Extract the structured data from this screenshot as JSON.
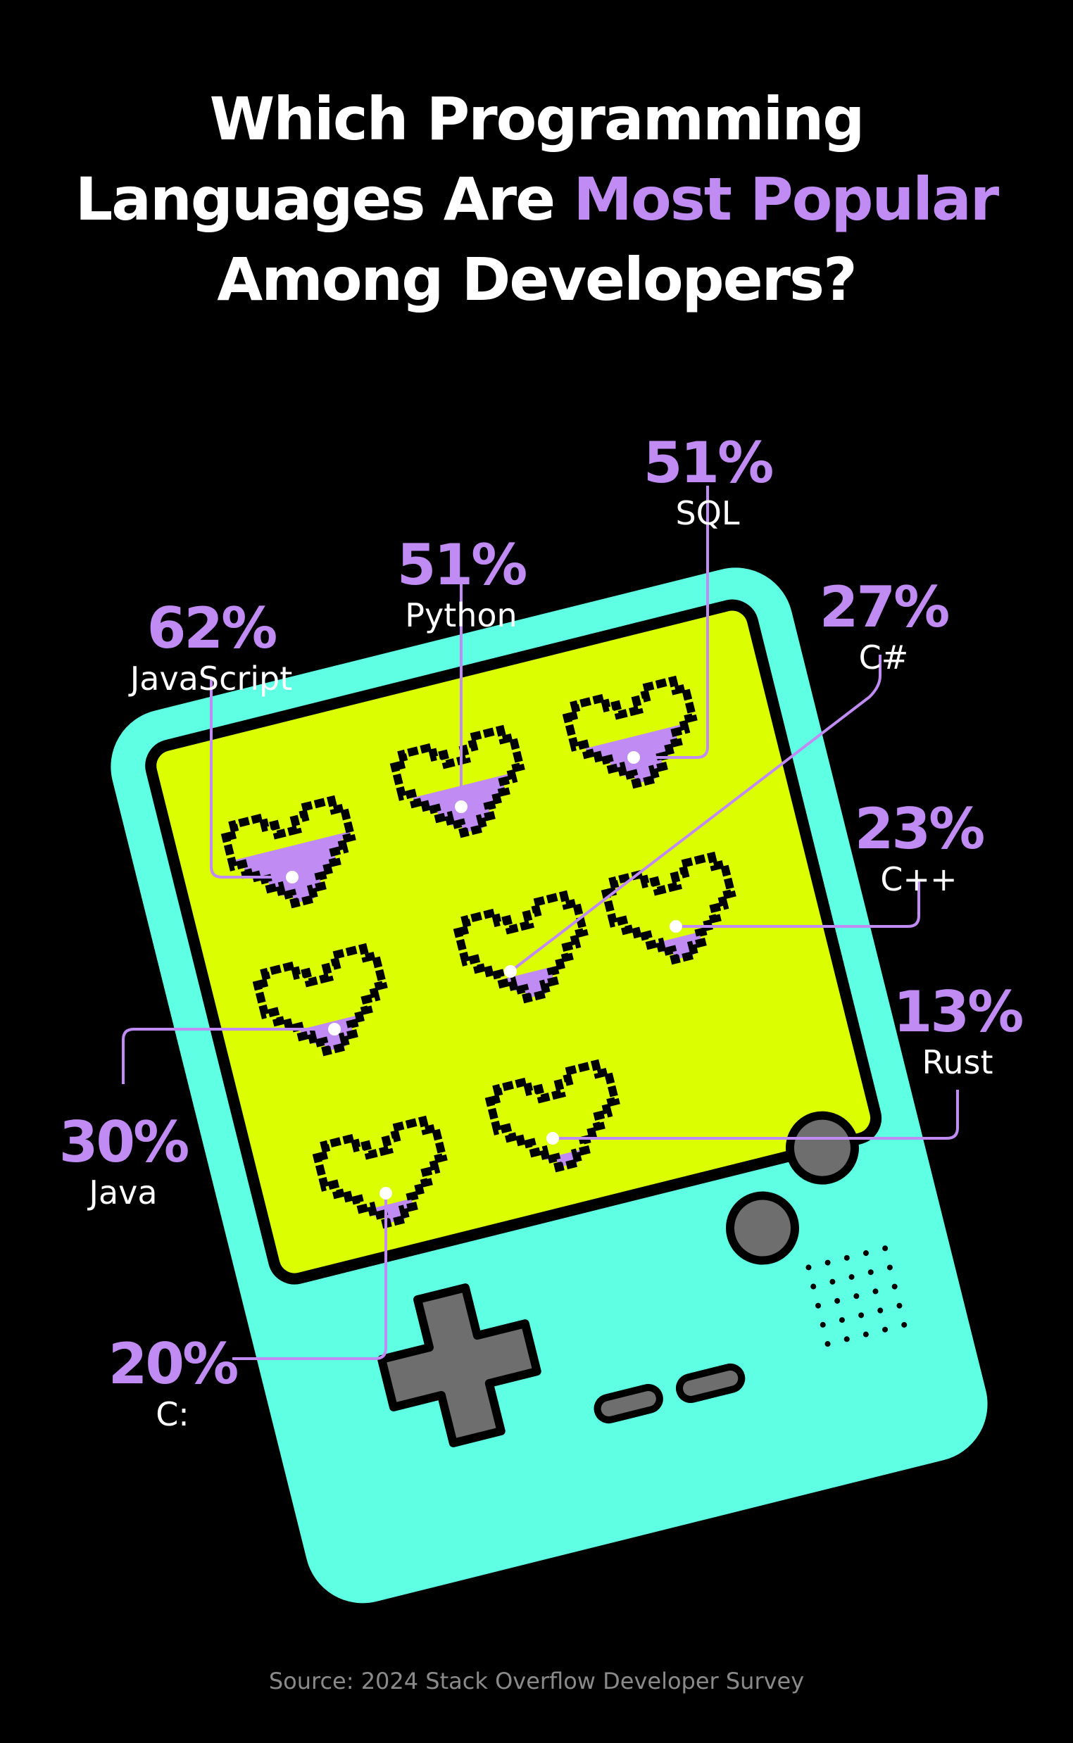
{
  "title": {
    "line1": "Which Programming",
    "line2_pre": "Languages Are ",
    "line2_highlight": "Most Popular",
    "line3": "Among Developers?"
  },
  "source": "Source: 2024 Stack Overflow Developer Survey",
  "colors": {
    "background": "#000000",
    "accent": "#c08bf2",
    "device_body": "#5effe3",
    "screen": "#dbff00",
    "buttons": "#6e6e6e"
  },
  "chart_data": {
    "type": "pictograph",
    "items": [
      {
        "label": "JavaScript",
        "pct_label": "62%",
        "value": 62
      },
      {
        "label": "Python",
        "pct_label": "51%",
        "value": 51
      },
      {
        "label": "SQL",
        "pct_label": "51%",
        "value": 51
      },
      {
        "label": "C#",
        "pct_label": "27%",
        "value": 27
      },
      {
        "label": "C++",
        "pct_label": "23%",
        "value": 23
      },
      {
        "label": "Java",
        "pct_label": "30%",
        "value": 30
      },
      {
        "label": "Rust",
        "pct_label": "13%",
        "value": 13
      },
      {
        "label": "C:",
        "pct_label": "20%",
        "value": 20
      }
    ]
  }
}
